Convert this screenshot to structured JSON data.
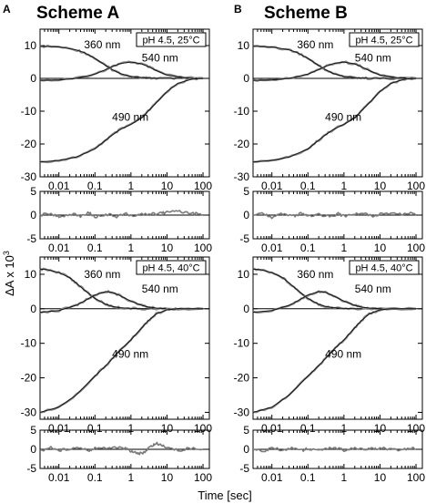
{
  "figure": {
    "ylabel_prefix": "ΔA x 10",
    "ylabel_exp": "3",
    "xlabel": "Time [sec]"
  },
  "columns": [
    {
      "letter": "A",
      "title": "Scheme A"
    },
    {
      "letter": "B",
      "title": "Scheme B"
    }
  ],
  "chart_data": [
    {
      "type": "line",
      "id": "A-top",
      "column": "A",
      "condition": "pH 4.5, 25°C",
      "xscale": "log",
      "xlim": [
        0.003,
        150
      ],
      "ylim": [
        -30,
        15
      ],
      "xticks": [
        0.01,
        0.1,
        1,
        10,
        100
      ],
      "xtick_labels": [
        "0.01",
        "0.1",
        "1",
        "10",
        "100"
      ],
      "yticks": [
        -30,
        -20,
        -10,
        0,
        10
      ],
      "ytick_labels": [
        "-30",
        "-20",
        "-10",
        "0",
        "10"
      ],
      "series": [
        {
          "name": "360 nm",
          "x": [
            0.003,
            0.01,
            0.03,
            0.05,
            0.1,
            0.2,
            0.3,
            0.5,
            1,
            2,
            3,
            5,
            10,
            30,
            100
          ],
          "y": [
            9.8,
            9.6,
            8.7,
            7.9,
            6.1,
            3.9,
            2.7,
            1.5,
            0.6,
            0.25,
            0.1,
            0.05,
            0,
            0,
            0
          ]
        },
        {
          "name": "540 nm",
          "x": [
            0.003,
            0.01,
            0.03,
            0.1,
            0.2,
            0.3,
            0.5,
            1,
            2,
            3,
            5,
            10,
            30,
            100
          ],
          "y": [
            -0.6,
            -0.5,
            0,
            1.3,
            2.7,
            3.6,
            4.5,
            5,
            4.4,
            3.6,
            2.4,
            1,
            0.2,
            0
          ]
        },
        {
          "name": "490 nm",
          "x": [
            0.003,
            0.01,
            0.03,
            0.1,
            0.2,
            0.3,
            0.5,
            1,
            2,
            3,
            5,
            10,
            20,
            50,
            100
          ],
          "y": [
            -25.5,
            -25,
            -24,
            -21.5,
            -18.8,
            -17.3,
            -15.6,
            -14,
            -12,
            -10,
            -7.5,
            -4,
            -1.5,
            -0.2,
            0
          ]
        }
      ]
    },
    {
      "type": "line",
      "id": "A-top-resid",
      "column": "A",
      "xscale": "log",
      "xlim": [
        0.003,
        150
      ],
      "ylim": [
        -5,
        5
      ],
      "xticks": [
        0.01,
        0.1,
        1,
        10,
        100
      ],
      "xtick_labels": [
        "0.01",
        "0.1",
        "1",
        "10",
        "100"
      ],
      "yticks": [
        -5,
        0,
        5
      ],
      "ytick_labels": [
        "-5",
        "0",
        "5"
      ],
      "series": [
        {
          "name": "residuals",
          "x": [
            0.003,
            0.006,
            0.01,
            0.02,
            0.04,
            0.07,
            0.1,
            0.2,
            0.4,
            0.7,
            1,
            2,
            4,
            7,
            10,
            20,
            40,
            70,
            100
          ],
          "y": [
            0,
            0.4,
            -0.5,
            0.3,
            -0.2,
            0.5,
            -0.4,
            0.2,
            -0.3,
            0.4,
            -0.2,
            0.3,
            0.2,
            0.4,
            0.6,
            0.9,
            0.5,
            0.3,
            0
          ]
        }
      ]
    },
    {
      "type": "line",
      "id": "A-bottom",
      "column": "A",
      "condition": "pH 4.5, 40°C",
      "xscale": "log",
      "xlim": [
        0.003,
        150
      ],
      "ylim": [
        -32,
        15
      ],
      "xticks": [
        0.01,
        0.1,
        1,
        10,
        100
      ],
      "xtick_labels": [
        "0.01",
        "0.1",
        "1",
        "10",
        "100"
      ],
      "yticks": [
        -30,
        -20,
        -10,
        0,
        10
      ],
      "ytick_labels": [
        "-30",
        "-20",
        "-10",
        "0",
        "10"
      ],
      "series": [
        {
          "name": "360 nm",
          "x": [
            0.003,
            0.005,
            0.01,
            0.02,
            0.03,
            0.05,
            0.1,
            0.2,
            0.3,
            0.5,
            1,
            2,
            5,
            10,
            100
          ],
          "y": [
            11.5,
            11.3,
            10.5,
            9,
            7.5,
            5.5,
            3,
            1.3,
            0.7,
            0.3,
            0.1,
            0,
            0,
            0,
            0
          ]
        },
        {
          "name": "540 nm",
          "x": [
            0.003,
            0.01,
            0.03,
            0.05,
            0.1,
            0.2,
            0.3,
            0.5,
            1,
            2,
            3,
            5,
            10,
            100
          ],
          "y": [
            -1,
            -0.5,
            1,
            2.2,
            4,
            5,
            4.8,
            3.8,
            2.2,
            1,
            0.5,
            0.2,
            0,
            0
          ]
        },
        {
          "name": "490 nm",
          "x": [
            0.003,
            0.01,
            0.03,
            0.1,
            0.2,
            0.3,
            0.5,
            1,
            2,
            3,
            5,
            10,
            20,
            100
          ],
          "y": [
            -30,
            -28.5,
            -25,
            -19.5,
            -16.5,
            -14.5,
            -12,
            -9,
            -5.5,
            -3.5,
            -1.5,
            -0.3,
            0,
            0
          ]
        }
      ]
    },
    {
      "type": "line",
      "id": "A-bottom-resid",
      "column": "A",
      "xscale": "log",
      "xlim": [
        0.003,
        150
      ],
      "ylim": [
        -5,
        5
      ],
      "xticks": [
        0.01,
        0.1,
        1,
        10,
        100
      ],
      "xtick_labels": [
        "0.01",
        "0.1",
        "1",
        "10",
        "100"
      ],
      "yticks": [
        -5,
        0,
        5
      ],
      "ytick_labels": [
        "-5",
        "0",
        "5"
      ],
      "series": [
        {
          "name": "residuals",
          "x": [
            0.003,
            0.006,
            0.01,
            0.02,
            0.04,
            0.07,
            0.1,
            0.2,
            0.4,
            0.7,
            1,
            1.5,
            2,
            3,
            4,
            5,
            7,
            10,
            20,
            40,
            100
          ],
          "y": [
            -0.5,
            0.6,
            -0.3,
            0.2,
            0.5,
            -0.2,
            0.4,
            0.3,
            0.6,
            0.2,
            -0.4,
            -0.9,
            -1.2,
            0.2,
            1,
            1.5,
            1.2,
            0.5,
            -0.3,
            0.2,
            0
          ]
        }
      ]
    },
    {
      "type": "line",
      "id": "B-top",
      "column": "B",
      "condition": "pH 4.5, 25°C",
      "xscale": "log",
      "xlim": [
        0.003,
        150
      ],
      "ylim": [
        -30,
        15
      ],
      "xticks": [
        0.01,
        0.1,
        1,
        10,
        100
      ],
      "xtick_labels": [
        "0.01",
        "0.1",
        "1",
        "10",
        "100"
      ],
      "yticks": [
        -30,
        -20,
        -10,
        0,
        10
      ],
      "ytick_labels": [
        "-30",
        "-20",
        "-10",
        "0",
        "10"
      ],
      "series": [
        {
          "name": "360 nm",
          "x": [
            0.003,
            0.01,
            0.03,
            0.05,
            0.1,
            0.2,
            0.3,
            0.5,
            1,
            2,
            3,
            5,
            10,
            30,
            100
          ],
          "y": [
            9.8,
            9.6,
            8.7,
            7.9,
            6.1,
            3.9,
            2.7,
            1.5,
            0.6,
            0.25,
            0.1,
            0.05,
            0,
            0,
            0
          ]
        },
        {
          "name": "540 nm",
          "x": [
            0.003,
            0.01,
            0.03,
            0.1,
            0.2,
            0.3,
            0.5,
            1,
            2,
            3,
            5,
            10,
            30,
            100
          ],
          "y": [
            -0.6,
            -0.5,
            0,
            1.3,
            2.7,
            3.6,
            4.5,
            5,
            4.4,
            3.6,
            2.4,
            1,
            0.2,
            0
          ]
        },
        {
          "name": "490 nm",
          "x": [
            0.003,
            0.01,
            0.03,
            0.1,
            0.2,
            0.3,
            0.5,
            1,
            2,
            3,
            5,
            10,
            20,
            50,
            100
          ],
          "y": [
            -25.5,
            -25,
            -24,
            -21.5,
            -18.8,
            -17.3,
            -15.6,
            -14,
            -12,
            -10,
            -7.5,
            -4,
            -1.5,
            -0.2,
            0
          ]
        }
      ]
    },
    {
      "type": "line",
      "id": "B-top-resid",
      "column": "B",
      "xscale": "log",
      "xlim": [
        0.003,
        150
      ],
      "ylim": [
        -5,
        5
      ],
      "xticks": [
        0.01,
        0.1,
        1,
        10,
        100
      ],
      "xtick_labels": [
        "0.01",
        "0.1",
        "1",
        "10",
        "100"
      ],
      "yticks": [
        -5,
        0,
        5
      ],
      "ytick_labels": [
        "-5",
        "0",
        "5"
      ],
      "series": [
        {
          "name": "residuals",
          "x": [
            0.003,
            0.006,
            0.01,
            0.02,
            0.04,
            0.07,
            0.1,
            0.2,
            0.4,
            0.7,
            1,
            2,
            4,
            7,
            10,
            20,
            40,
            70,
            100
          ],
          "y": [
            0,
            0.4,
            -0.5,
            0.3,
            -0.2,
            0.4,
            -0.4,
            0.2,
            -0.3,
            0.3,
            -0.2,
            0.2,
            0.3,
            -0.2,
            0.3,
            0.4,
            0.2,
            0.3,
            0
          ]
        }
      ]
    },
    {
      "type": "line",
      "id": "B-bottom",
      "column": "B",
      "condition": "pH 4.5, 40°C",
      "xscale": "log",
      "xlim": [
        0.003,
        150
      ],
      "ylim": [
        -32,
        15
      ],
      "xticks": [
        0.01,
        0.1,
        1,
        10,
        100
      ],
      "xtick_labels": [
        "0.01",
        "0.1",
        "1",
        "10",
        "100"
      ],
      "yticks": [
        -30,
        -20,
        -10,
        0,
        10
      ],
      "ytick_labels": [
        "-30",
        "-20",
        "-10",
        "0",
        "10"
      ],
      "series": [
        {
          "name": "360 nm",
          "x": [
            0.003,
            0.005,
            0.01,
            0.02,
            0.03,
            0.05,
            0.1,
            0.2,
            0.3,
            0.5,
            1,
            2,
            5,
            10,
            100
          ],
          "y": [
            11.5,
            11.3,
            10.5,
            9,
            7.5,
            5.5,
            3,
            1.3,
            0.7,
            0.3,
            0.1,
            0,
            0,
            0,
            0
          ]
        },
        {
          "name": "540 nm",
          "x": [
            0.003,
            0.01,
            0.03,
            0.05,
            0.1,
            0.2,
            0.3,
            0.5,
            1,
            2,
            3,
            5,
            10,
            100
          ],
          "y": [
            -1,
            -0.5,
            1,
            2.2,
            4,
            5,
            4.8,
            3.8,
            2.2,
            1,
            0.5,
            0.2,
            0,
            0
          ]
        },
        {
          "name": "490 nm",
          "x": [
            0.003,
            0.01,
            0.03,
            0.1,
            0.2,
            0.3,
            0.5,
            1,
            2,
            3,
            5,
            10,
            20,
            100
          ],
          "y": [
            -30,
            -28.5,
            -25,
            -19.5,
            -16.5,
            -14.5,
            -12,
            -9,
            -5.5,
            -3.5,
            -1.5,
            -0.3,
            0,
            0
          ]
        }
      ]
    },
    {
      "type": "line",
      "id": "B-bottom-resid",
      "column": "B",
      "xscale": "log",
      "xlim": [
        0.003,
        150
      ],
      "ylim": [
        -5,
        5
      ],
      "xticks": [
        0.01,
        0.1,
        1,
        10,
        100
      ],
      "xtick_labels": [
        "0.01",
        "0.1",
        "1",
        "10",
        "100"
      ],
      "yticks": [
        -5,
        0,
        5
      ],
      "ytick_labels": [
        "-5",
        "0",
        "5"
      ],
      "series": [
        {
          "name": "residuals",
          "x": [
            0.003,
            0.006,
            0.01,
            0.02,
            0.04,
            0.07,
            0.1,
            0.2,
            0.4,
            0.7,
            1,
            2,
            4,
            7,
            10,
            20,
            40,
            70,
            100
          ],
          "y": [
            0.2,
            -0.4,
            0.3,
            -0.2,
            0.3,
            -0.3,
            0.2,
            -0.2,
            0.3,
            0.2,
            -0.3,
            0.2,
            -0.2,
            0.3,
            0.2,
            0.2,
            -0.2,
            0.3,
            0
          ]
        }
      ]
    }
  ]
}
